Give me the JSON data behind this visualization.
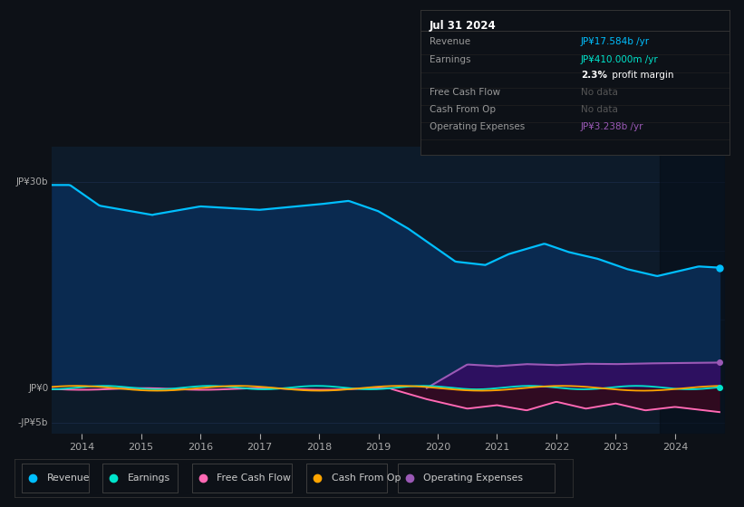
{
  "background_color": "#0d1117",
  "plot_bg_color": "#0d1b2a",
  "grid_color": "#1e3050",
  "text_color": "#aaaaaa",
  "revenue_color": "#00bfff",
  "earnings_color": "#00e5cc",
  "fcf_color": "#ff69b4",
  "cashfromop_color": "#ffa500",
  "opex_color": "#9b59b6",
  "xtick_years": [
    2014,
    2015,
    2016,
    2017,
    2018,
    2019,
    2020,
    2021,
    2022,
    2023,
    2024
  ],
  "info_box": {
    "date": "Jul 31 2024",
    "revenue_label": "Revenue",
    "revenue_value": "JP¥17.584b /yr",
    "earnings_label": "Earnings",
    "earnings_value": "JP¥410.000m /yr",
    "earnings_sub": "2.3% profit margin",
    "fcf_label": "Free Cash Flow",
    "fcf_value": "No data",
    "cashfromop_label": "Cash From Op",
    "cashfromop_value": "No data",
    "opex_label": "Operating Expenses",
    "opex_value": "JP¥3.238b /yr"
  },
  "legend_items": [
    {
      "label": "Revenue",
      "color": "#00bfff"
    },
    {
      "label": "Earnings",
      "color": "#00e5cc"
    },
    {
      "label": "Free Cash Flow",
      "color": "#ff69b4"
    },
    {
      "label": "Cash From Op",
      "color": "#ffa500"
    },
    {
      "label": "Operating Expenses",
      "color": "#9b59b6"
    }
  ]
}
